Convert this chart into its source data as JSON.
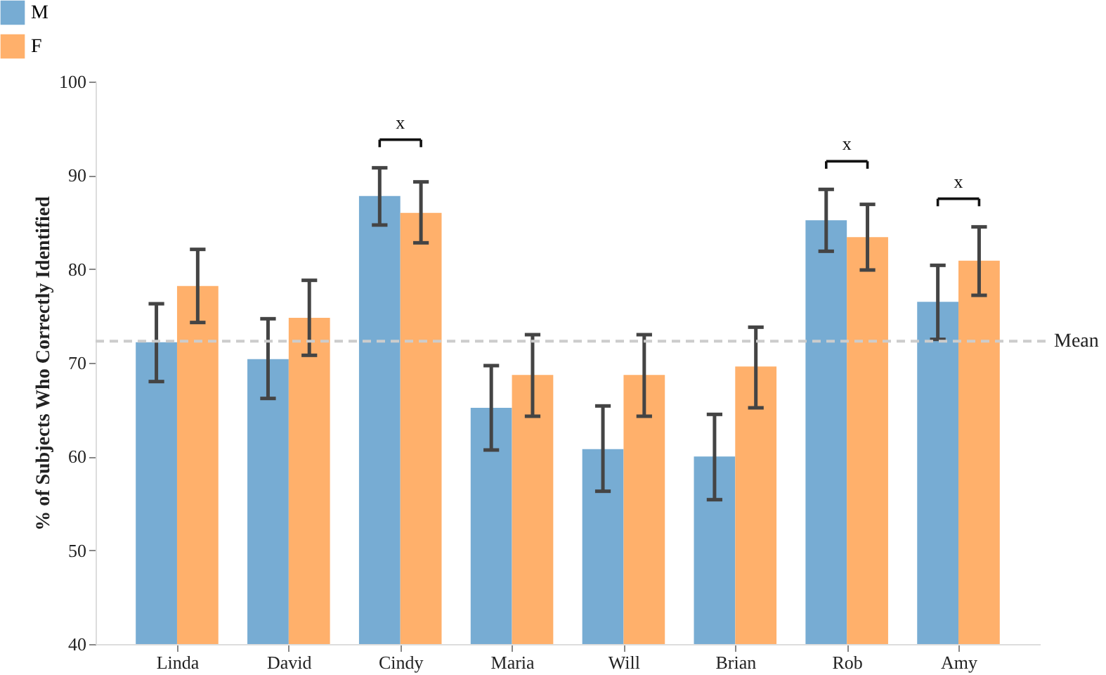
{
  "chart_data": {
    "type": "bar",
    "ylabel": "% of Subjects Who Correctly Identified",
    "categories": [
      "Linda",
      "David",
      "Cindy",
      "Maria",
      "Will",
      "Brian",
      "Rob",
      "Amy"
    ],
    "series": [
      {
        "name": "M",
        "color": "#77acd3",
        "values": [
          72.2,
          70.4,
          87.8,
          65.2,
          60.8,
          60.0,
          85.2,
          76.5
        ],
        "errors": [
          [
            68.0,
            76.3
          ],
          [
            66.2,
            74.7
          ],
          [
            84.7,
            90.8
          ],
          [
            60.7,
            69.7
          ],
          [
            56.3,
            65.4
          ],
          [
            55.4,
            64.5
          ],
          [
            81.9,
            88.5
          ],
          [
            72.5,
            80.4
          ]
        ]
      },
      {
        "name": "F",
        "color": "#ffb06b",
        "values": [
          78.2,
          74.8,
          86.0,
          68.7,
          68.7,
          69.6,
          83.4,
          80.9
        ],
        "errors": [
          [
            74.3,
            82.1
          ],
          [
            70.8,
            78.8
          ],
          [
            82.8,
            89.3
          ],
          [
            64.3,
            73.0
          ],
          [
            64.3,
            73.0
          ],
          [
            65.2,
            73.8
          ],
          [
            79.9,
            86.9
          ],
          [
            77.2,
            84.5
          ]
        ]
      }
    ],
    "ylim": [
      40,
      100
    ],
    "yticks": [
      40,
      50,
      60,
      70,
      80,
      90,
      100
    ],
    "ref_lines": [
      {
        "axis": "y",
        "value": 72.3,
        "label": "Mean",
        "color": "#cccccc",
        "line_style": "dashed"
      }
    ],
    "annotations": [
      "x",
      "x",
      "x"
    ],
    "legend": "top left",
    "grid": false
  }
}
